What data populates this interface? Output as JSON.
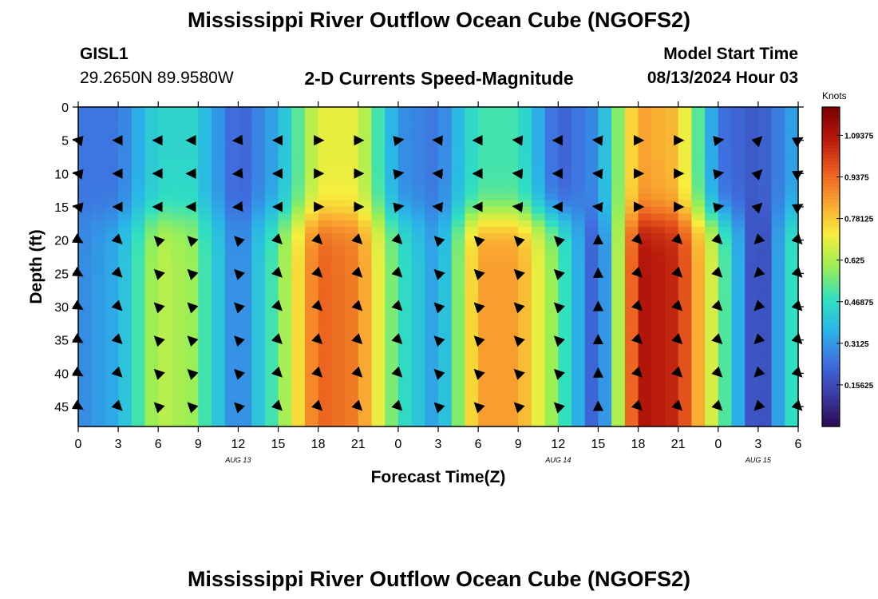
{
  "header": {
    "title": "Mississippi River Outflow Ocean Cube (NGOFS2)",
    "station_id": "GISL1",
    "station_coords": "29.2650N  89.9580W",
    "subtitle": "2-D Currents Speed-Magnitude",
    "model_start_label": "Model Start Time",
    "model_start_value": "08/13/2024 Hour 03",
    "bottom_title": "Mississippi River Outflow Ocean Cube (NGOFS2)"
  },
  "colors": {
    "ramp": [
      "#2a0a52",
      "#3b3ba6",
      "#3f6fe0",
      "#2ab5e8",
      "#30e0c0",
      "#9aef55",
      "#f7ee3c",
      "#f9a430",
      "#ea5a1e",
      "#b8180c",
      "#7a0000"
    ],
    "arrow": "#000000"
  },
  "chart_data": {
    "type": "heatmap",
    "title": "2-D Currents Speed-Magnitude",
    "xlabel": "Forecast Time(Z)",
    "ylabel": "Depth (ft)",
    "colorbar_label": "Knots",
    "xlim": [
      0,
      54
    ],
    "ylim": [
      0,
      48
    ],
    "x_ticks": [
      0,
      3,
      6,
      9,
      12,
      15,
      18,
      21,
      24,
      27,
      30,
      33,
      36,
      39,
      42,
      45,
      48,
      51,
      54
    ],
    "x_tick_labels": [
      "0",
      "3",
      "6",
      "9",
      "12",
      "15",
      "18",
      "21",
      "0",
      "3",
      "6",
      "9",
      "12",
      "15",
      "18",
      "21",
      "0",
      "3",
      "6"
    ],
    "y_ticks": [
      0,
      5,
      10,
      15,
      20,
      25,
      30,
      35,
      40,
      45
    ],
    "y_tick_labels": [
      "0",
      "5",
      "10",
      "15",
      "20",
      "25",
      "30",
      "35",
      "40",
      "45"
    ],
    "date_labels": [
      {
        "x": 12,
        "text": "AUG 13"
      },
      {
        "x": 36,
        "text": "AUG 14"
      },
      {
        "x": 51,
        "text": "AUG 15"
      }
    ],
    "colorbar_ticks": [
      0.15625,
      0.3125,
      0.46875,
      0.625,
      0.78125,
      0.9375,
      1.09375
    ],
    "colorbar_tick_labels": [
      "0.15625",
      "0.3125",
      "0.46875",
      "0.625",
      "0.78125",
      "0.9375",
      "1.09375"
    ],
    "colorbar_range": [
      0,
      1.2
    ],
    "arrow_times": [
      0,
      3,
      6,
      8.5,
      12,
      15,
      18,
      21,
      24,
      27,
      30,
      33,
      36,
      39,
      42,
      45,
      48,
      51,
      54
    ],
    "arrow_depths": [
      5,
      10,
      15,
      20,
      25,
      30,
      35,
      40,
      45
    ],
    "surface_speed": [
      0.25,
      0.25,
      0.45,
      0.45,
      0.2,
      0.35,
      0.7,
      0.7,
      0.3,
      0.25,
      0.5,
      0.5,
      0.2,
      0.3,
      0.85,
      0.8,
      0.25,
      0.18,
      0.35
    ],
    "deep_speed": [
      0.28,
      0.35,
      0.65,
      0.6,
      0.25,
      0.55,
      0.95,
      0.9,
      0.5,
      0.3,
      0.85,
      0.85,
      0.55,
      0.15,
      1.1,
      1.05,
      0.6,
      0.1,
      0.55
    ],
    "surface_direction_deg": [
      170,
      180,
      180,
      180,
      185,
      180,
      0,
      0,
      10,
      175,
      180,
      175,
      180,
      175,
      0,
      0,
      10,
      45,
      30
    ],
    "deep_direction_deg": [
      330,
      315,
      135,
      135,
      135,
      315,
      315,
      315,
      315,
      135,
      135,
      135,
      135,
      90,
      315,
      315,
      315,
      225,
      315
    ]
  }
}
